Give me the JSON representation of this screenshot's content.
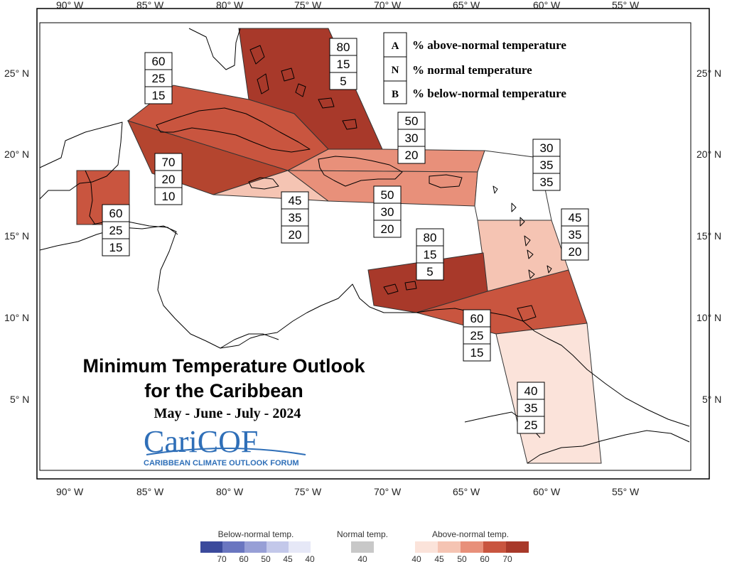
{
  "map": {
    "longitude_labels": [
      "90° W",
      "85° W",
      "80° W",
      "75° W",
      "70° W",
      "65° W",
      "60° W",
      "55° W"
    ],
    "latitude_labels": [
      "25° N",
      "20° N",
      "15° N",
      "10° N",
      "5° N"
    ]
  },
  "key": {
    "rows": [
      {
        "letter": "A",
        "text": "% above-normal temperature"
      },
      {
        "letter": "N",
        "text": "% normal temperature"
      },
      {
        "letter": "B",
        "text": "% below-normal temperature"
      }
    ]
  },
  "title": {
    "line1": "Minimum Temperature Outlook",
    "line2": "for the Caribbean",
    "period": "May - June - July - 2024"
  },
  "logo": {
    "name": "CariCOF",
    "subtitle": "CARIBBEAN CLIMATE OUTLOOK FORUM"
  },
  "regions": [
    {
      "id": "bahamas",
      "probs": [
        "80",
        "15",
        "5"
      ],
      "color": "#a8392a"
    },
    {
      "id": "cuba",
      "probs": [
        "60",
        "25",
        "15"
      ],
      "color": "#c9553f"
    },
    {
      "id": "hispaniola-pr",
      "probs": [
        "50",
        "30",
        "20"
      ],
      "color": "#e8907a"
    },
    {
      "id": "central-strip",
      "probs": [
        "70",
        "20",
        "10"
      ],
      "color": "#b4452f"
    },
    {
      "id": "belize",
      "probs": [
        "60",
        "25",
        "15"
      ],
      "color": "#c9553f"
    },
    {
      "id": "jamaica",
      "probs": [
        "45",
        "35",
        "20"
      ],
      "color": "#f5c4b3"
    },
    {
      "id": "hispaniola-south",
      "probs": [
        "50",
        "30",
        "20"
      ],
      "color": "#e8907a"
    },
    {
      "id": "leeward",
      "probs": [
        "30",
        "35",
        "35"
      ],
      "color": "#ffffff"
    },
    {
      "id": "windward",
      "probs": [
        "45",
        "35",
        "20"
      ],
      "color": "#f5c4b3"
    },
    {
      "id": "abc-islands",
      "probs": [
        "80",
        "15",
        "5"
      ],
      "color": "#a8392a"
    },
    {
      "id": "trinidad",
      "probs": [
        "60",
        "25",
        "15"
      ],
      "color": "#c9553f"
    },
    {
      "id": "guianas",
      "probs": [
        "40",
        "35",
        "25"
      ],
      "color": "#fbe3da"
    }
  ],
  "legend": {
    "below": {
      "title": "Below-normal temp.",
      "ticks": [
        "70",
        "60",
        "50",
        "45",
        "40"
      ],
      "colors": [
        "#3b4a9c",
        "#6a76c0",
        "#979fd6",
        "#c3c8ea",
        "#e6e8f7"
      ]
    },
    "normal": {
      "title": "Normal temp.",
      "ticks": [
        "40"
      ],
      "colors": [
        "#c8c8c8"
      ]
    },
    "above": {
      "title": "Above-normal temp.",
      "ticks": [
        "40",
        "45",
        "50",
        "60",
        "70"
      ],
      "colors": [
        "#fbe3da",
        "#f5c4b3",
        "#e8907a",
        "#c9553f",
        "#a8392a"
      ]
    }
  }
}
